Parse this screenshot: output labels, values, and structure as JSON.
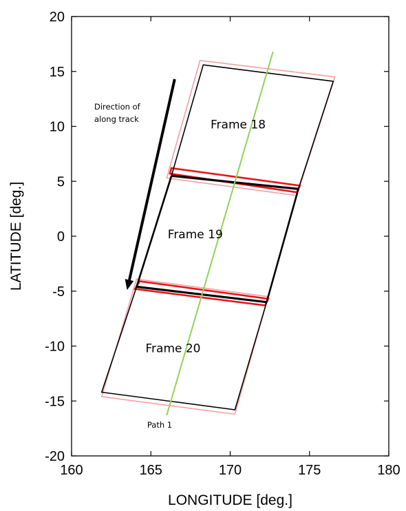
{
  "chart_data": {
    "type": "diagram",
    "xlabel": "LONGITUDE [deg.]",
    "ylabel": "LATITUDE [deg.]",
    "xlim": [
      160,
      180
    ],
    "ylim": [
      -20,
      20
    ],
    "xticks": [
      160,
      165,
      170,
      175,
      180
    ],
    "yticks": [
      20,
      15,
      10,
      5,
      0,
      -5,
      -10,
      -15,
      -20
    ],
    "grid": false,
    "annotations": {
      "direction_line1": "Direction of",
      "direction_line2": "along track",
      "frames": [
        {
          "label": "Frame 18",
          "x": 170.5,
          "y": 10.2
        },
        {
          "label": "Frame 19",
          "x": 167.8,
          "y": 0.2
        },
        {
          "label": "Frame 20",
          "x": 166.4,
          "y": -10.2
        }
      ],
      "path_label": "Path 1"
    },
    "colors": {
      "frame_outline": "#000000",
      "overlap_red": "#e8141b",
      "nominal_pink": "#f3a0a3",
      "path_green": "#8ed35b"
    },
    "geometry_data": {
      "path_line": [
        [
          166.0,
          -16.3
        ],
        [
          172.7,
          16.8
        ]
      ],
      "arrow": {
        "from": [
          166.5,
          14.3
        ],
        "to": [
          163.5,
          -4.9
        ]
      },
      "outline": [
        [
          168.3,
          15.6
        ],
        [
          176.5,
          14.1
        ],
        [
          174.3,
          4.3
        ],
        [
          172.3,
          -6.0
        ],
        [
          170.3,
          -15.8
        ],
        [
          161.9,
          -14.2
        ],
        [
          164.1,
          -4.6
        ],
        [
          166.3,
          5.5
        ]
      ],
      "black_bands": [
        [
          [
            166.3,
            5.5
          ],
          [
            174.3,
            4.3
          ]
        ],
        [
          [
            164.1,
            -4.6
          ],
          [
            172.3,
            -6.0
          ]
        ]
      ],
      "red_boxes": [
        [
          [
            166.3,
            6.2
          ],
          [
            174.4,
            4.6
          ],
          [
            174.2,
            4.0
          ],
          [
            166.2,
            5.7
          ]
        ],
        [
          [
            164.3,
            -4.1
          ],
          [
            172.4,
            -5.7
          ],
          [
            172.2,
            -6.3
          ],
          [
            164.0,
            -4.8
          ]
        ]
      ],
      "pink_boxes": [
        [
          [
            168.1,
            16.0
          ],
          [
            176.6,
            14.5
          ],
          [
            174.2,
            3.7
          ],
          [
            166.0,
            5.3
          ]
        ],
        [
          [
            164.1,
            -3.9
          ],
          [
            172.4,
            -5.5
          ],
          [
            170.3,
            -16.2
          ],
          [
            161.9,
            -14.6
          ]
        ]
      ]
    }
  }
}
